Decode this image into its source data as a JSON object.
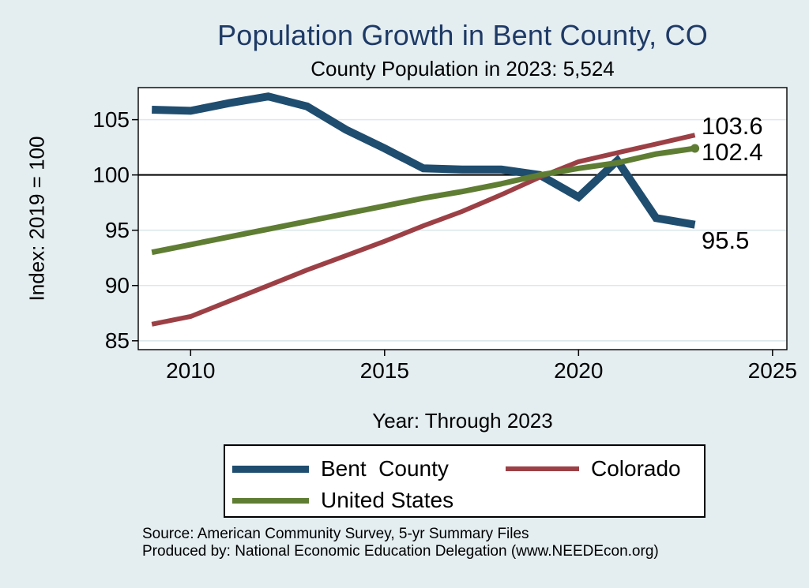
{
  "chart_data": {
    "type": "line",
    "title": "Population Growth in Bent County, CO",
    "subtitle": "County Population in 2023: 5,524",
    "xlabel": "Year: Through 2023",
    "ylabel": "Index: 2019 = 100",
    "x": [
      2009,
      2010,
      2011,
      2012,
      2013,
      2014,
      2015,
      2016,
      2017,
      2018,
      2019,
      2020,
      2021,
      2022,
      2023
    ],
    "xticks": [
      2010,
      2015,
      2020,
      2025
    ],
    "yticks": [
      85,
      90,
      95,
      100,
      105
    ],
    "xlim": [
      2008.65,
      2025.37
    ],
    "ylim": [
      84.2,
      107.9
    ],
    "reference_line_y": 100,
    "grid": "horizontal",
    "legend_position": "bottom",
    "plot_background": "#ffffff",
    "gridline_color": "#dce8ec",
    "series": [
      {
        "name": "Bent  County",
        "color": "#1f4d6f",
        "stroke_width": 10,
        "values": [
          105.9,
          105.8,
          106.5,
          107.1,
          106.2,
          104.1,
          102.4,
          100.6,
          100.5,
          100.5,
          100.0,
          98.0,
          101.3,
          96.1,
          95.5
        ],
        "end_label": "95.5",
        "label_dy": 20,
        "end_marker": false
      },
      {
        "name": "Colorado",
        "color": "#9c4046",
        "stroke_width": 6,
        "values": [
          86.5,
          87.2,
          88.6,
          90.0,
          91.4,
          92.7,
          94.0,
          95.4,
          96.7,
          98.2,
          99.8,
          101.2,
          102.0,
          102.8,
          103.6
        ],
        "end_label": "103.6",
        "label_dy": -11,
        "end_marker": false
      },
      {
        "name": "United States",
        "color": "#5f7d33",
        "stroke_width": 7,
        "values": [
          93.0,
          93.7,
          94.4,
          95.1,
          95.8,
          96.5,
          97.2,
          97.9,
          98.5,
          99.2,
          100.0,
          100.6,
          101.1,
          101.9,
          102.4
        ],
        "end_label": "102.4",
        "label_dy": 5,
        "end_marker": true
      }
    ]
  },
  "notes": {
    "source": "Source: American Community Survey, 5-yr Summary Files",
    "produced_by": "Produced by: National Economic Education Delegation (www.NEEDEcon.org)"
  }
}
